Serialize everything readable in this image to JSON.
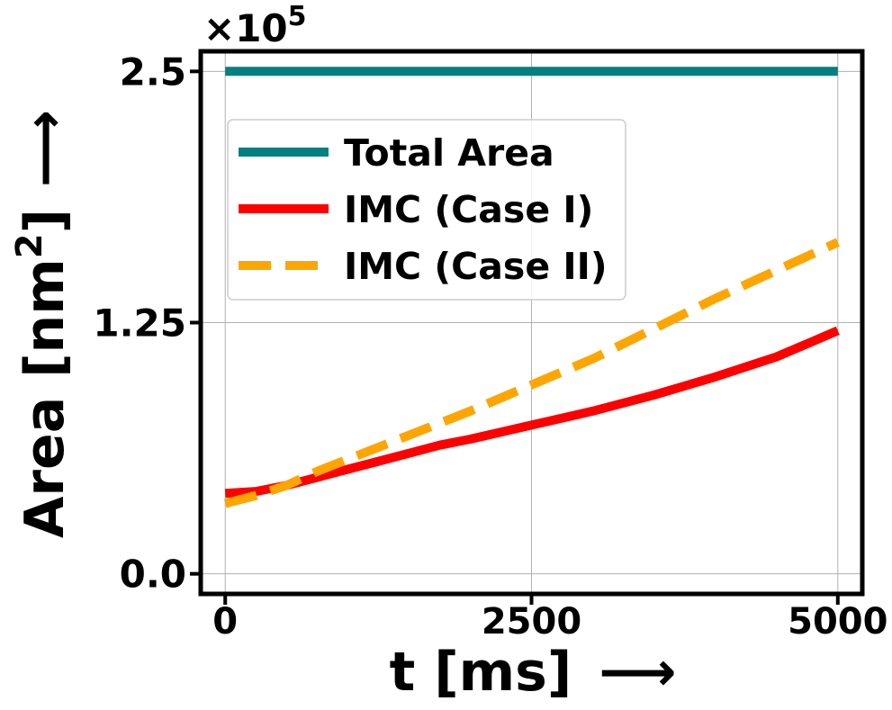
{
  "chart_data": {
    "type": "line",
    "xlabel": "t [ms]",
    "xlabel_arrow": "⟶",
    "ylabel_main": "Area [nm",
    "ylabel_sup": "2",
    "ylabel_end": "]",
    "ylabel_arrow": "⟶",
    "y_multiplier": "×10",
    "y_multiplier_exp": "5",
    "xlim": [
      -200,
      5200
    ],
    "ylim": [
      -0.1,
      2.6
    ],
    "x_ticks": [
      0,
      2500,
      5000
    ],
    "x_tick_labels": [
      "0",
      "2500",
      "5000"
    ],
    "y_ticks": [
      0.0,
      1.25,
      2.5
    ],
    "y_tick_labels": [
      "0.0",
      "1.25",
      "2.5"
    ],
    "y_unit_scale": 100000,
    "grid": true,
    "legend_position": "upper-left",
    "series": [
      {
        "name": "Total Area",
        "color": "#008080",
        "style": "solid",
        "x": [
          0,
          1000,
          2000,
          3000,
          4000,
          5000
        ],
        "y": [
          2.5,
          2.5,
          2.5,
          2.5,
          2.5,
          2.5
        ]
      },
      {
        "name": "IMC (Case I)",
        "color": "#ff0000",
        "style": "solid",
        "x": [
          0,
          250,
          500,
          750,
          1000,
          1250,
          1500,
          1750,
          2000,
          2500,
          3000,
          3500,
          4000,
          4500,
          5000
        ],
        "y": [
          0.4,
          0.41,
          0.44,
          0.48,
          0.52,
          0.56,
          0.6,
          0.64,
          0.67,
          0.74,
          0.81,
          0.89,
          0.98,
          1.08,
          1.21
        ]
      },
      {
        "name": "IMC (Case II)",
        "color": "#ffa500",
        "style": "dashed",
        "x": [
          0,
          250,
          500,
          750,
          1000,
          1250,
          1500,
          1750,
          2000,
          2500,
          3000,
          3500,
          4000,
          4500,
          5000
        ],
        "y": [
          0.35,
          0.39,
          0.44,
          0.51,
          0.57,
          0.63,
          0.69,
          0.75,
          0.81,
          0.94,
          1.07,
          1.22,
          1.37,
          1.51,
          1.65
        ]
      }
    ]
  }
}
